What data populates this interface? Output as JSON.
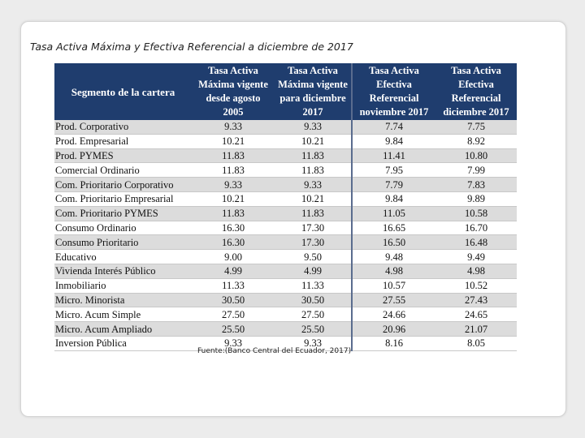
{
  "title": "Tasa Activa Máxima y Efectiva Referencial a diciembre de 2017",
  "table": {
    "headers": [
      [
        "Segmento de la cartera"
      ],
      [
        "Tasa Activa",
        "Máxima vigente",
        "desde agosto",
        "2005"
      ],
      [
        "Tasa Activa",
        "Máxima vigente",
        "para diciembre",
        "2017"
      ],
      [
        "Tasa Activa",
        "Efectiva",
        "Referencial",
        "noviembre 2017"
      ],
      [
        "Tasa Activa",
        "Efectiva",
        "Referencial",
        "diciembre 2017"
      ]
    ],
    "rows": [
      [
        "Prod. Corporativo",
        "9.33",
        "9.33",
        "7.74",
        "7.75"
      ],
      [
        "Prod. Empresarial",
        "10.21",
        "10.21",
        "9.84",
        "8.92"
      ],
      [
        "Prod. PYMES",
        "11.83",
        "11.83",
        "11.41",
        "10.80"
      ],
      [
        "Comercial Ordinario",
        "11.83",
        "11.83",
        "7.95",
        "7.99"
      ],
      [
        "Com. Prioritario Corporativo",
        "9.33",
        "9.33",
        "7.79",
        "7.83"
      ],
      [
        "Com. Prioritario Empresarial",
        "10.21",
        "10.21",
        "9.84",
        "9.89"
      ],
      [
        "Com. Prioritario PYMES",
        "11.83",
        "11.83",
        "11.05",
        "10.58"
      ],
      [
        "Consumo Ordinario",
        "16.30",
        "17.30",
        "16.65",
        "16.70"
      ],
      [
        "Consumo Prioritario",
        "16.30",
        "17.30",
        "16.50",
        "16.48"
      ],
      [
        "Educativo",
        "9.00",
        "9.50",
        "9.48",
        "9.49"
      ],
      [
        "Vivienda Interés Público",
        "4.99",
        "4.99",
        "4.98",
        "4.98"
      ],
      [
        "Inmobiliario",
        "11.33",
        "11.33",
        "10.57",
        "10.52"
      ],
      [
        "Micro. Minorista",
        "30.50",
        "30.50",
        "27.55",
        "27.43"
      ],
      [
        "Micro. Acum Simple",
        "27.50",
        "27.50",
        "24.66",
        "24.65"
      ],
      [
        "Micro. Acum Ampliado",
        "25.50",
        "25.50",
        "20.96",
        "21.07"
      ],
      [
        "Inversion Pública",
        "9.33",
        "9.33",
        "8.16",
        "8.05"
      ]
    ]
  },
  "source": "Fuente:(Banco Central del Ecuador, 2017)"
}
